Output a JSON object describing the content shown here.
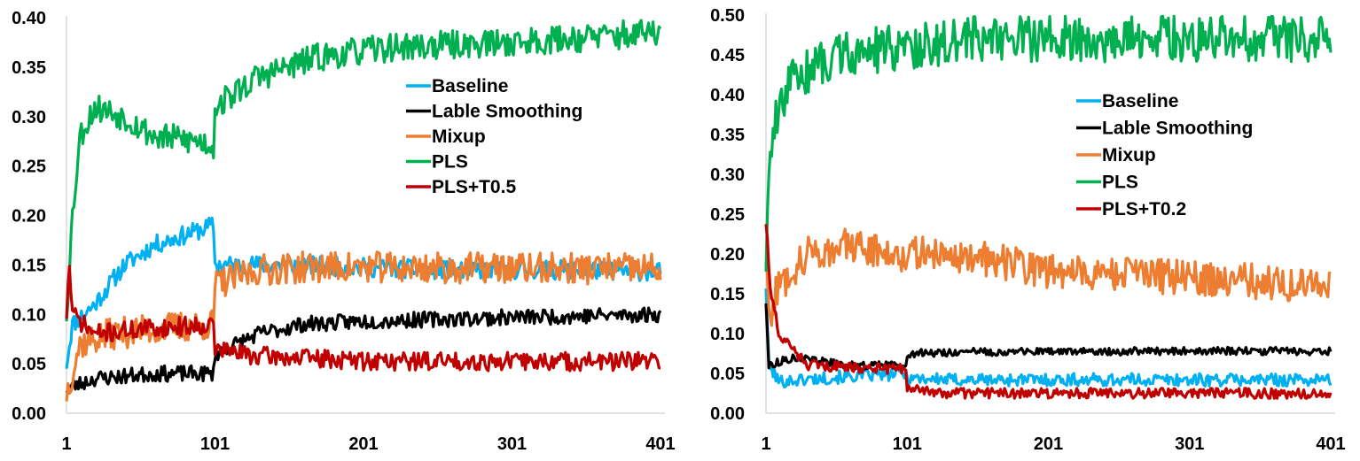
{
  "chart_data": [
    {
      "type": "line",
      "title": "",
      "xlabel": "",
      "ylabel": "",
      "xlim": [
        1,
        401
      ],
      "ylim": [
        0,
        0.4
      ],
      "x_ticks": [
        1,
        101,
        201,
        301,
        401
      ],
      "y_ticks": [
        0.0,
        0.05,
        0.1,
        0.15,
        0.2,
        0.25,
        0.3,
        0.35,
        0.4
      ],
      "x_tick_labels": [
        "1",
        "101",
        "201",
        "301",
        "401"
      ],
      "y_tick_labels": [
        "0.00",
        "0.05",
        "0.10",
        "0.15",
        "0.20",
        "0.25",
        "0.30",
        "0.35",
        "0.40"
      ],
      "grid": false,
      "legend_position": "center-right",
      "series": [
        {
          "name": "Baseline",
          "color": "#00B0F0",
          "noise": 0.006,
          "seed": 11,
          "knots": [
            [
              1,
              0.05
            ],
            [
              5,
              0.09
            ],
            [
              20,
              0.11
            ],
            [
              40,
              0.15
            ],
            [
              60,
              0.17
            ],
            [
              80,
              0.18
            ],
            [
              100,
              0.19
            ],
            [
              101,
              0.15
            ],
            [
              150,
              0.15
            ],
            [
              250,
              0.145
            ],
            [
              350,
              0.145
            ],
            [
              401,
              0.143
            ]
          ]
        },
        {
          "name": "Lable Smoothing",
          "color": "#000000",
          "noise": 0.005,
          "seed": 23,
          "knots": [
            [
              1,
              0.025
            ],
            [
              20,
              0.035
            ],
            [
              60,
              0.04
            ],
            [
              100,
              0.04
            ],
            [
              101,
              0.06
            ],
            [
              130,
              0.08
            ],
            [
              160,
              0.09
            ],
            [
              200,
              0.093
            ],
            [
              300,
              0.097
            ],
            [
              401,
              0.1
            ]
          ]
        },
        {
          "name": "Mixup",
          "color": "#ED7D31",
          "noise": 0.01,
          "seed": 37,
          "knots": [
            [
              1,
              0.02
            ],
            [
              10,
              0.07
            ],
            [
              30,
              0.08
            ],
            [
              60,
              0.085
            ],
            [
              100,
              0.09
            ],
            [
              101,
              0.13
            ],
            [
              130,
              0.145
            ],
            [
              170,
              0.148
            ],
            [
              250,
              0.147
            ],
            [
              401,
              0.146
            ]
          ]
        },
        {
          "name": "PLS",
          "color": "#00B050",
          "noise": 0.009,
          "seed": 53,
          "knots": [
            [
              1,
              0.1
            ],
            [
              5,
              0.2
            ],
            [
              10,
              0.28
            ],
            [
              20,
              0.31
            ],
            [
              40,
              0.3
            ],
            [
              60,
              0.28
            ],
            [
              90,
              0.275
            ],
            [
              100,
              0.27
            ],
            [
              101,
              0.31
            ],
            [
              130,
              0.34
            ],
            [
              170,
              0.36
            ],
            [
              220,
              0.37
            ],
            [
              300,
              0.375
            ],
            [
              401,
              0.385
            ]
          ]
        },
        {
          "name": "PLS+T0.5",
          "color": "#C00000",
          "noise": 0.006,
          "seed": 71,
          "knots": [
            [
              1,
              0.1
            ],
            [
              3,
              0.15
            ],
            [
              5,
              0.1
            ],
            [
              20,
              0.08
            ],
            [
              50,
              0.085
            ],
            [
              100,
              0.09
            ],
            [
              101,
              0.065
            ],
            [
              130,
              0.058
            ],
            [
              200,
              0.053
            ],
            [
              401,
              0.052
            ]
          ]
        }
      ]
    },
    {
      "type": "line",
      "title": "",
      "xlabel": "",
      "ylabel": "",
      "xlim": [
        1,
        401
      ],
      "ylim": [
        0,
        0.5
      ],
      "x_ticks": [
        1,
        101,
        201,
        301,
        401
      ],
      "y_ticks": [
        0.0,
        0.05,
        0.1,
        0.15,
        0.2,
        0.25,
        0.3,
        0.35,
        0.4,
        0.45,
        0.5
      ],
      "x_tick_labels": [
        "1",
        "101",
        "201",
        "301",
        "401"
      ],
      "y_tick_labels": [
        "0.00",
        "0.05",
        "0.10",
        "0.15",
        "0.20",
        "0.25",
        "0.30",
        "0.35",
        "0.40",
        "0.45",
        "0.50"
      ],
      "grid": false,
      "legend_position": "center-right",
      "series": [
        {
          "name": "Baseline",
          "color": "#00B0F0",
          "noise": 0.005,
          "seed": 101,
          "knots": [
            [
              1,
              0.16
            ],
            [
              3,
              0.06
            ],
            [
              10,
              0.04
            ],
            [
              50,
              0.045
            ],
            [
              100,
              0.05
            ],
            [
              101,
              0.045
            ],
            [
              130,
              0.042
            ],
            [
              200,
              0.042
            ],
            [
              401,
              0.042
            ]
          ]
        },
        {
          "name": "Lable Smoothing",
          "color": "#000000",
          "noise": 0.003,
          "seed": 113,
          "knots": [
            [
              1,
              0.14
            ],
            [
              3,
              0.06
            ],
            [
              20,
              0.07
            ],
            [
              60,
              0.06
            ],
            [
              100,
              0.06
            ],
            [
              101,
              0.075
            ],
            [
              150,
              0.077
            ],
            [
              300,
              0.078
            ],
            [
              401,
              0.078
            ]
          ]
        },
        {
          "name": "Mixup",
          "color": "#ED7D31",
          "noise": 0.014,
          "seed": 127,
          "knots": [
            [
              1,
              0.2
            ],
            [
              3,
              0.12
            ],
            [
              10,
              0.16
            ],
            [
              30,
              0.2
            ],
            [
              60,
              0.21
            ],
            [
              100,
              0.2
            ],
            [
              130,
              0.2
            ],
            [
              200,
              0.18
            ],
            [
              300,
              0.17
            ],
            [
              401,
              0.16
            ]
          ]
        },
        {
          "name": "PLS",
          "color": "#00B050",
          "noise": 0.018,
          "seed": 139,
          "knots": [
            [
              1,
              0.19
            ],
            [
              5,
              0.35
            ],
            [
              20,
              0.42
            ],
            [
              50,
              0.45
            ],
            [
              100,
              0.46
            ],
            [
              150,
              0.47
            ],
            [
              250,
              0.47
            ],
            [
              350,
              0.47
            ],
            [
              401,
              0.47
            ]
          ]
        },
        {
          "name": "PLS+T0.2",
          "color": "#C00000",
          "noise": 0.004,
          "seed": 151,
          "knots": [
            [
              1,
              0.24
            ],
            [
              4,
              0.16
            ],
            [
              10,
              0.1
            ],
            [
              30,
              0.06
            ],
            [
              100,
              0.055
            ],
            [
              101,
              0.03
            ],
            [
              130,
              0.025
            ],
            [
              401,
              0.025
            ]
          ]
        }
      ]
    }
  ]
}
